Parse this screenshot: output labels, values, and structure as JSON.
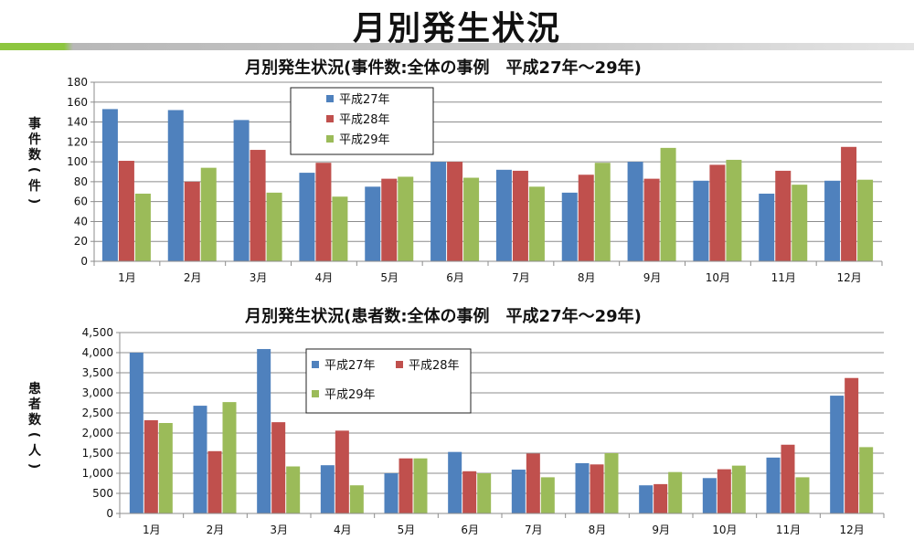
{
  "page": {
    "title": "月別発生状況"
  },
  "colors": {
    "s2015": "#4f81bd",
    "s2016": "#c0504d",
    "s2017": "#9bbb59"
  },
  "chart_data": [
    {
      "type": "bar",
      "title": "月別発生状況(事件数:全体の事例　平成27年～29年)",
      "ylabel": "事件数(件)",
      "ylim": [
        0,
        180
      ],
      "yticks": [
        0,
        20,
        40,
        60,
        80,
        100,
        120,
        140,
        160,
        180
      ],
      "ytick_labels": [
        "0",
        "20",
        "40",
        "60",
        "80",
        "100",
        "120",
        "140",
        "160",
        "180"
      ],
      "grid": true,
      "legend": "top-center",
      "categories": [
        "1月",
        "2月",
        "3月",
        "4月",
        "5月",
        "6月",
        "7月",
        "8月",
        "9月",
        "10月",
        "11月",
        "12月"
      ],
      "series": [
        {
          "name": "平成27年",
          "values": [
            153,
            152,
            142,
            89,
            75,
            100,
            92,
            69,
            100,
            81,
            68,
            81
          ]
        },
        {
          "name": "平成28年",
          "values": [
            101,
            80,
            112,
            99,
            83,
            100,
            91,
            87,
            83,
            97,
            91,
            115
          ]
        },
        {
          "name": "平成29年",
          "values": [
            68,
            94,
            69,
            65,
            85,
            84,
            75,
            99,
            114,
            102,
            77,
            82
          ]
        }
      ]
    },
    {
      "type": "bar",
      "title": "月別発生状況(患者数:全体の事例　平成27年～29年)",
      "ylabel": "患者数(人)",
      "ylim": [
        0,
        4500
      ],
      "yticks": [
        0,
        500,
        1000,
        1500,
        2000,
        2500,
        3000,
        3500,
        4000,
        4500
      ],
      "ytick_labels": [
        "0",
        "500",
        "1,000",
        "1,500",
        "2,000",
        "2,500",
        "3,000",
        "3,500",
        "4,000",
        "4,500"
      ],
      "grid": true,
      "legend": "top-center",
      "categories": [
        "1月",
        "2月",
        "3月",
        "4月",
        "5月",
        "6月",
        "7月",
        "8月",
        "9月",
        "10月",
        "11月",
        "12月"
      ],
      "series": [
        {
          "name": "平成27年",
          "values": [
            4000,
            2680,
            4090,
            1200,
            1000,
            1530,
            1090,
            1250,
            700,
            880,
            1390,
            2930
          ]
        },
        {
          "name": "平成28年",
          "values": [
            2320,
            1550,
            2270,
            2060,
            1370,
            1050,
            1490,
            1220,
            730,
            1100,
            1710,
            3370
          ]
        },
        {
          "name": "平成29年",
          "values": [
            2250,
            2770,
            1170,
            700,
            1370,
            1000,
            900,
            1500,
            1030,
            1190,
            900,
            1650
          ]
        }
      ]
    }
  ]
}
